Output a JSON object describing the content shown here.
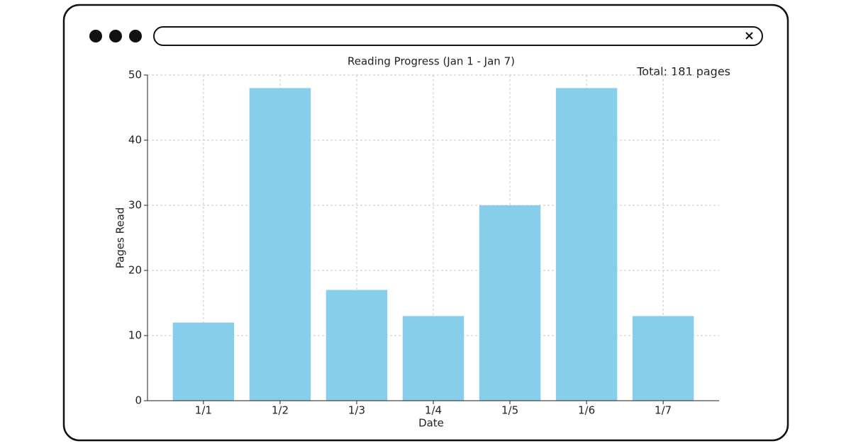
{
  "chart_data": {
    "type": "bar",
    "title": "Reading Progress (Jan 1 - Jan 7)",
    "x_label": "Date",
    "y_label": "Pages Read",
    "annotation": "Total: 181 pages",
    "categories": [
      "1/1",
      "1/2",
      "1/3",
      "1/4",
      "1/5",
      "1/6",
      "1/7"
    ],
    "values": [
      12,
      48,
      17,
      13,
      30,
      48,
      13
    ],
    "color": "#87ceeb",
    "ylim": [
      0,
      50
    ],
    "yticks": [
      0,
      10,
      20,
      30,
      40,
      50
    ],
    "grid": true
  }
}
